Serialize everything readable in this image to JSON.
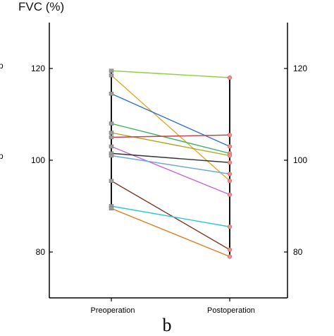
{
  "chart_data": {
    "type": "line",
    "title": "FVC (%)",
    "categories": [
      "Preoperation",
      "Postoperation"
    ],
    "ylim": [
      70,
      130
    ],
    "yticks": [
      80,
      100,
      120
    ],
    "left_ticks": [
      "80",
      "100",
      "120"
    ],
    "right_ticks": [
      "80",
      "100",
      "120"
    ],
    "grid": false,
    "series": [
      {
        "values": [
          119.5,
          118.0
        ],
        "color": "#8fd13f"
      },
      {
        "values": [
          118.5,
          95.5
        ],
        "color": "#e0a82e"
      },
      {
        "values": [
          114.5,
          103.0
        ],
        "color": "#2d72c9"
      },
      {
        "values": [
          108.0,
          101.5
        ],
        "color": "#35b55a"
      },
      {
        "values": [
          106.0,
          101.0
        ],
        "color": "#b5a316"
      },
      {
        "values": [
          105.0,
          105.5
        ],
        "color": "#d13a4a"
      },
      {
        "values": [
          103.0,
          92.5
        ],
        "color": "#c665d8"
      },
      {
        "values": [
          101.5,
          99.5
        ],
        "color": "#333333"
      },
      {
        "values": [
          101.0,
          97.0
        ],
        "color": "#6aa9d9"
      },
      {
        "values": [
          95.5,
          80.5
        ],
        "color": "#7a3b2e"
      },
      {
        "values": [
          90.0,
          85.5
        ],
        "color": "#2ec7d6"
      },
      {
        "values": [
          89.5,
          79.0
        ],
        "color": "#e07a1e"
      }
    ]
  },
  "panel_letter": "b",
  "left_edge_fragments": [
    "p",
    "p"
  ]
}
